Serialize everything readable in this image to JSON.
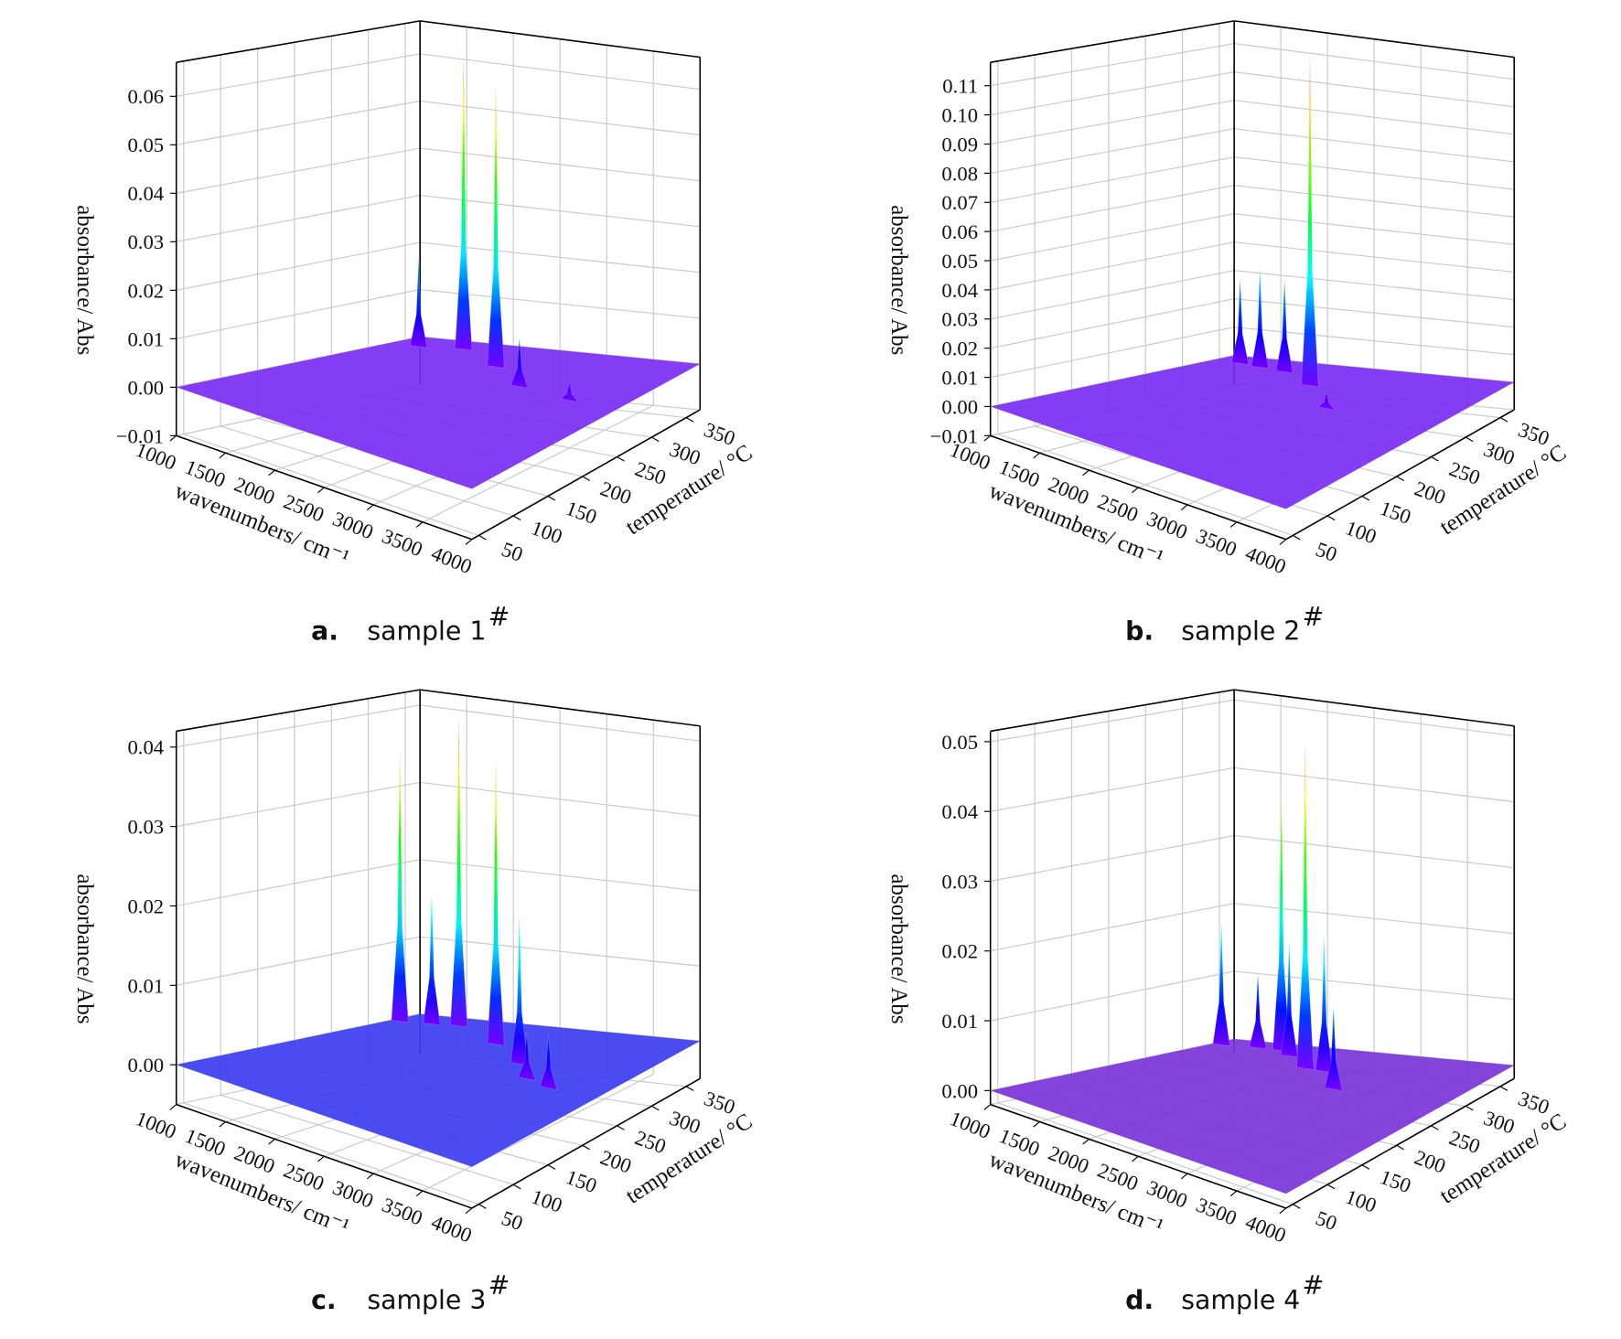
{
  "chart_data": [
    {
      "type": "surface3d",
      "label": "a.",
      "caption": "sample 1",
      "caption_mark": "#",
      "xlabel": "wavenumbers/ cm⁻¹",
      "ylabel": "temperature/ °C",
      "zlabel": "absorbance/ Abs",
      "xlim": [
        1000,
        4000
      ],
      "xticks": [
        1000,
        1500,
        2000,
        2500,
        3000,
        3500,
        4000
      ],
      "ylim": [
        40,
        370
      ],
      "yticks": [
        50,
        100,
        150,
        200,
        250,
        300,
        350
      ],
      "zlim": [
        -0.01,
        0.067
      ],
      "zticks": [
        {
          "value": -0.01,
          "label": "−0.01"
        },
        {
          "value": 0,
          "label": "0.00"
        },
        0.01,
        0.02,
        0.03,
        0.04,
        0.05,
        0.06
      ],
      "base_color": "#7b2cf2",
      "peaks": {
        "wavenumber": [
          1300,
          1700,
          2350,
          2900,
          3500
        ],
        "temperature": [
          330,
          340,
          300,
          260,
          250
        ],
        "absorbance": [
          0.019,
          0.062,
          0.06,
          0.01,
          0.004
        ]
      }
    },
    {
      "type": "surface3d",
      "label": "b.",
      "caption": "sample 2",
      "caption_mark": "#",
      "xlabel": "wavenumbers/ cm⁻¹",
      "ylabel": "temperature/ °C",
      "zlabel": "absorbance/ Abs",
      "xlim": [
        1000,
        4000
      ],
      "xticks": [
        1000,
        1500,
        2000,
        2500,
        3000,
        3500,
        4000
      ],
      "ylim": [
        40,
        370
      ],
      "yticks": [
        50,
        100,
        150,
        200,
        250,
        300,
        350
      ],
      "zlim": [
        -0.01,
        0.118
      ],
      "zticks": [
        {
          "value": -0.01,
          "label": "−0.01"
        },
        {
          "value": 0,
          "label": "0.00"
        },
        0.01,
        0.02,
        0.03,
        0.04,
        0.05,
        0.06,
        0.07,
        0.08,
        0.09,
        {
          "value": 0.1,
          "label": "0.10"
        },
        0.11
      ],
      "base_color": "#7b2cf2",
      "peaks": {
        "wavenumber": [
          1300,
          1550,
          1850,
          2350,
          2900
        ],
        "temperature": [
          340,
          335,
          330,
          300,
          250
        ],
        "absorbance": [
          0.03,
          0.035,
          0.033,
          0.116,
          0.006
        ]
      }
    },
    {
      "type": "surface3d",
      "label": "c.",
      "caption": "sample 3",
      "caption_mark": "#",
      "xlabel": "wavenumbers/ cm⁻¹",
      "ylabel": "temperature/ °C",
      "zlabel": "absorbance/ Abs",
      "xlim": [
        1000,
        4000
      ],
      "xticks": [
        1000,
        1500,
        2000,
        2500,
        3000,
        3500,
        4000
      ],
      "ylim": [
        40,
        370
      ],
      "yticks": [
        50,
        100,
        150,
        200,
        250,
        300,
        350
      ],
      "zlim": [
        -0.005,
        0.042
      ],
      "zticks": [
        {
          "value": 0,
          "label": "0.00"
        },
        0.01,
        0.02,
        0.03,
        0.04
      ],
      "base_color": "#3b3cf0",
      "peaks": {
        "wavenumber": [
          1100,
          1400,
          1650,
          2350,
          2900,
          3200,
          3500
        ],
        "temperature": [
          330,
          335,
          340,
          300,
          260,
          230,
          220
        ],
        "absorbance": [
          0.035,
          0.017,
          0.04,
          0.037,
          0.019,
          0.006,
          0.007
        ]
      }
    },
    {
      "type": "surface3d",
      "label": "d.",
      "caption": "sample 4",
      "caption_mark": "#",
      "xlabel": "wavenumbers/ cm⁻¹",
      "ylabel": "temperature/ °C",
      "zlabel": "absorbance/ Abs",
      "xlim": [
        1000,
        4000
      ],
      "xticks": [
        1000,
        1500,
        2000,
        2500,
        3000,
        3500,
        4000
      ],
      "ylim": [
        40,
        370
      ],
      "yticks": [
        50,
        100,
        150,
        200,
        250,
        300,
        350
      ],
      "zlim": [
        -0.002,
        0.0515
      ],
      "zticks": [
        {
          "value": 0,
          "label": "0.00"
        },
        0.01,
        0.02,
        0.03,
        0.04,
        0.05
      ],
      "base_color": "#7a33d8",
      "peaks": {
        "wavenumber": [
          1100,
          1450,
          1700,
          1900,
          2300,
          2500,
          2900
        ],
        "temperature": [
          340,
          345,
          345,
          330,
          300,
          300,
          260
        ],
        "absorbance": [
          0.018,
          0.011,
          0.038,
          0.017,
          0.048,
          0.02,
          0.012
        ]
      }
    }
  ]
}
